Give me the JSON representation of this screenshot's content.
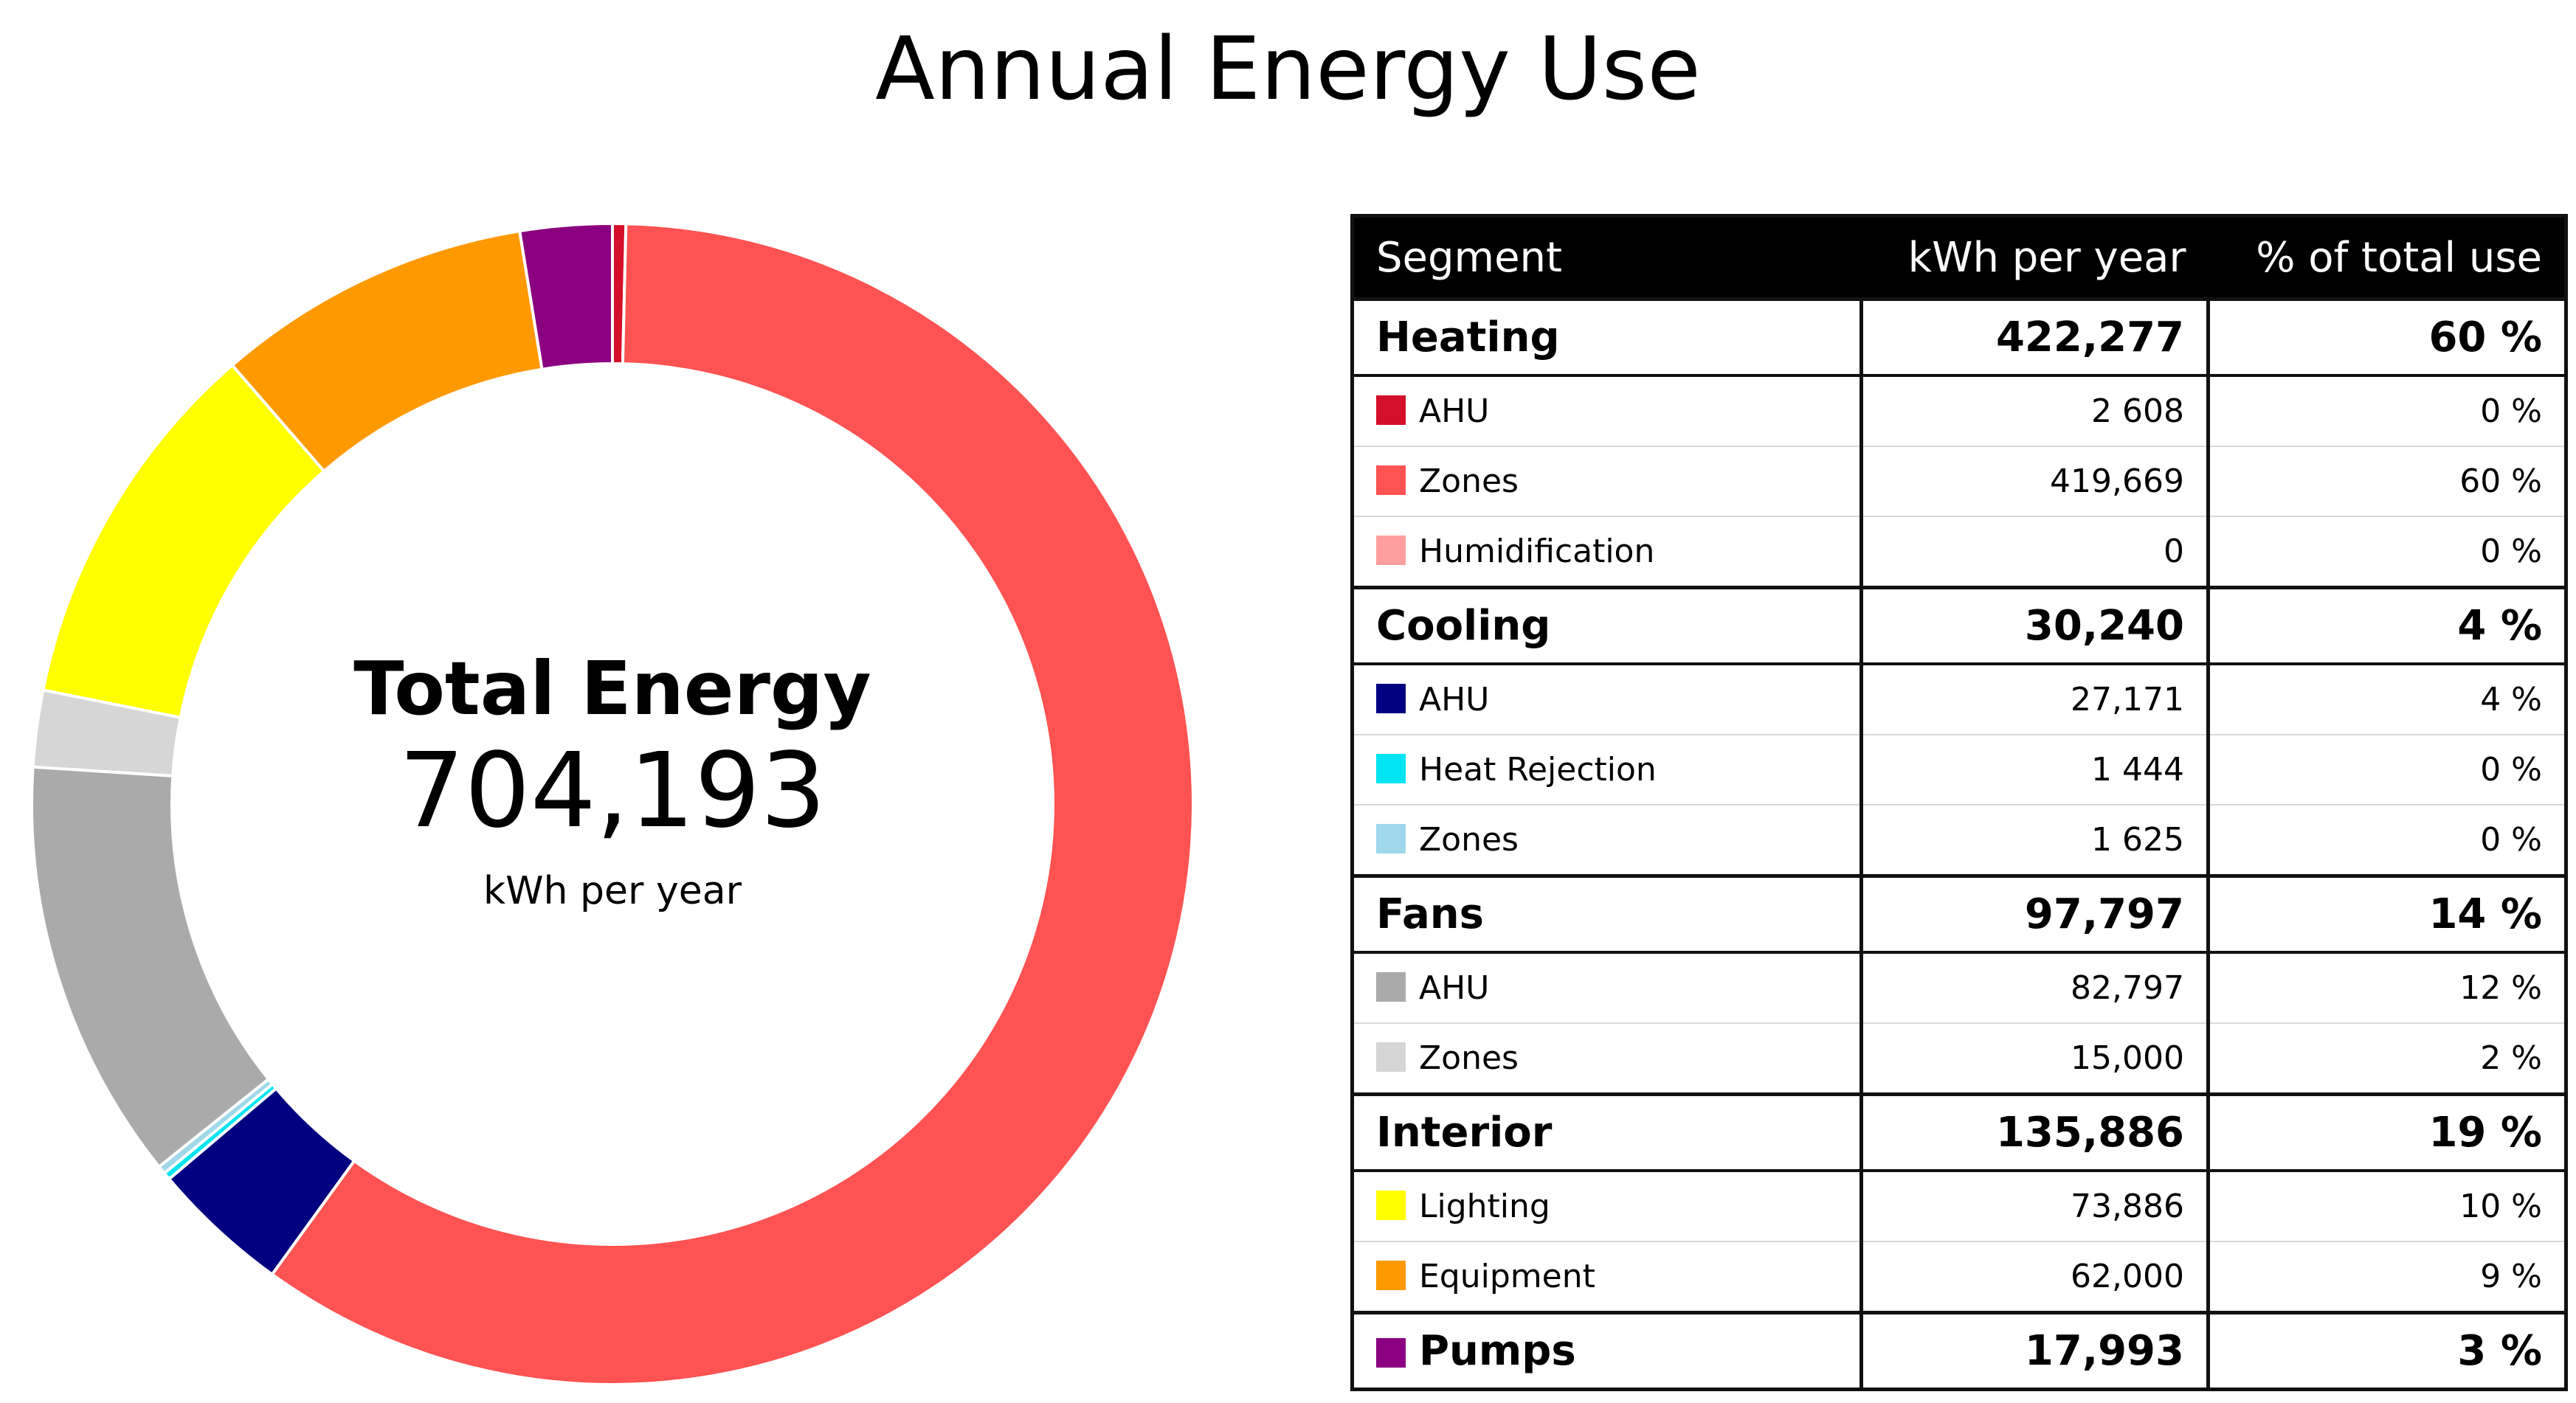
{
  "chart_data": {
    "type": "pie",
    "title": "Annual Energy Use",
    "center": {
      "label": "Total Energy",
      "value": "704,193",
      "unit": "kWh per year"
    },
    "slices": [
      {
        "segment": "Heating",
        "name": "AHU",
        "value": 2608,
        "color": "#d40f2a"
      },
      {
        "segment": "Heating",
        "name": "Zones",
        "value": 419669,
        "color": "#ff5252"
      },
      {
        "segment": "Heating",
        "name": "Humidification",
        "value": 0,
        "color": "#ff9e9e"
      },
      {
        "segment": "Cooling",
        "name": "AHU",
        "value": 27171,
        "color": "#000080"
      },
      {
        "segment": "Cooling",
        "name": "Heat Rejection",
        "value": 1444,
        "color": "#00e5f2"
      },
      {
        "segment": "Cooling",
        "name": "Zones",
        "value": 1625,
        "color": "#9fd8ea"
      },
      {
        "segment": "Fans",
        "name": "AHU",
        "value": 82797,
        "color": "#aaaaaa"
      },
      {
        "segment": "Fans",
        "name": "Zones",
        "value": 15000,
        "color": "#d6d6d6"
      },
      {
        "segment": "Interior",
        "name": "Lighting",
        "value": 73886,
        "color": "#ffff00"
      },
      {
        "segment": "Interior",
        "name": "Equipment",
        "value": 62000,
        "color": "#ff9900"
      },
      {
        "segment": "Pumps",
        "name": "Pumps",
        "value": 17993,
        "color": "#8b0080"
      }
    ]
  },
  "table": {
    "headers": [
      "Segment",
      "kWh per year",
      "% of total use"
    ],
    "groups": [
      {
        "name": "Heating",
        "kwh": "422,277",
        "pct": "60 %",
        "rows": [
          {
            "name": "AHU",
            "kwh": "2 608",
            "pct": "0 %",
            "color": "#d40f2a"
          },
          {
            "name": "Zones",
            "kwh": "419,669",
            "pct": "60 %",
            "color": "#ff5252"
          },
          {
            "name": "Humidification",
            "kwh": "0",
            "pct": "0 %",
            "color": "#ff9e9e"
          }
        ]
      },
      {
        "name": "Cooling",
        "kwh": "30,240",
        "pct": "4 %",
        "rows": [
          {
            "name": "AHU",
            "kwh": "27,171",
            "pct": "4 %",
            "color": "#000080"
          },
          {
            "name": "Heat Rejection",
            "kwh": "1 444",
            "pct": "0 %",
            "color": "#00e5f2"
          },
          {
            "name": "Zones",
            "kwh": "1 625",
            "pct": "0 %",
            "color": "#9fd8ea"
          }
        ]
      },
      {
        "name": "Fans",
        "kwh": "97,797",
        "pct": "14 %",
        "rows": [
          {
            "name": "AHU",
            "kwh": "82,797",
            "pct": "12 %",
            "color": "#aaaaaa"
          },
          {
            "name": "Zones",
            "kwh": "15,000",
            "pct": "2 %",
            "color": "#d6d6d6"
          }
        ]
      },
      {
        "name": "Interior",
        "kwh": "135,886",
        "pct": "19 %",
        "rows": [
          {
            "name": "Lighting",
            "kwh": "73,886",
            "pct": "10 %",
            "color": "#ffff00"
          },
          {
            "name": "Equipment",
            "kwh": "62,000",
            "pct": "9 %",
            "color": "#ff9900"
          }
        ]
      },
      {
        "name": "Pumps",
        "kwh": "17,993",
        "pct": "3 %",
        "color": "#8b0080",
        "rows": []
      }
    ]
  }
}
